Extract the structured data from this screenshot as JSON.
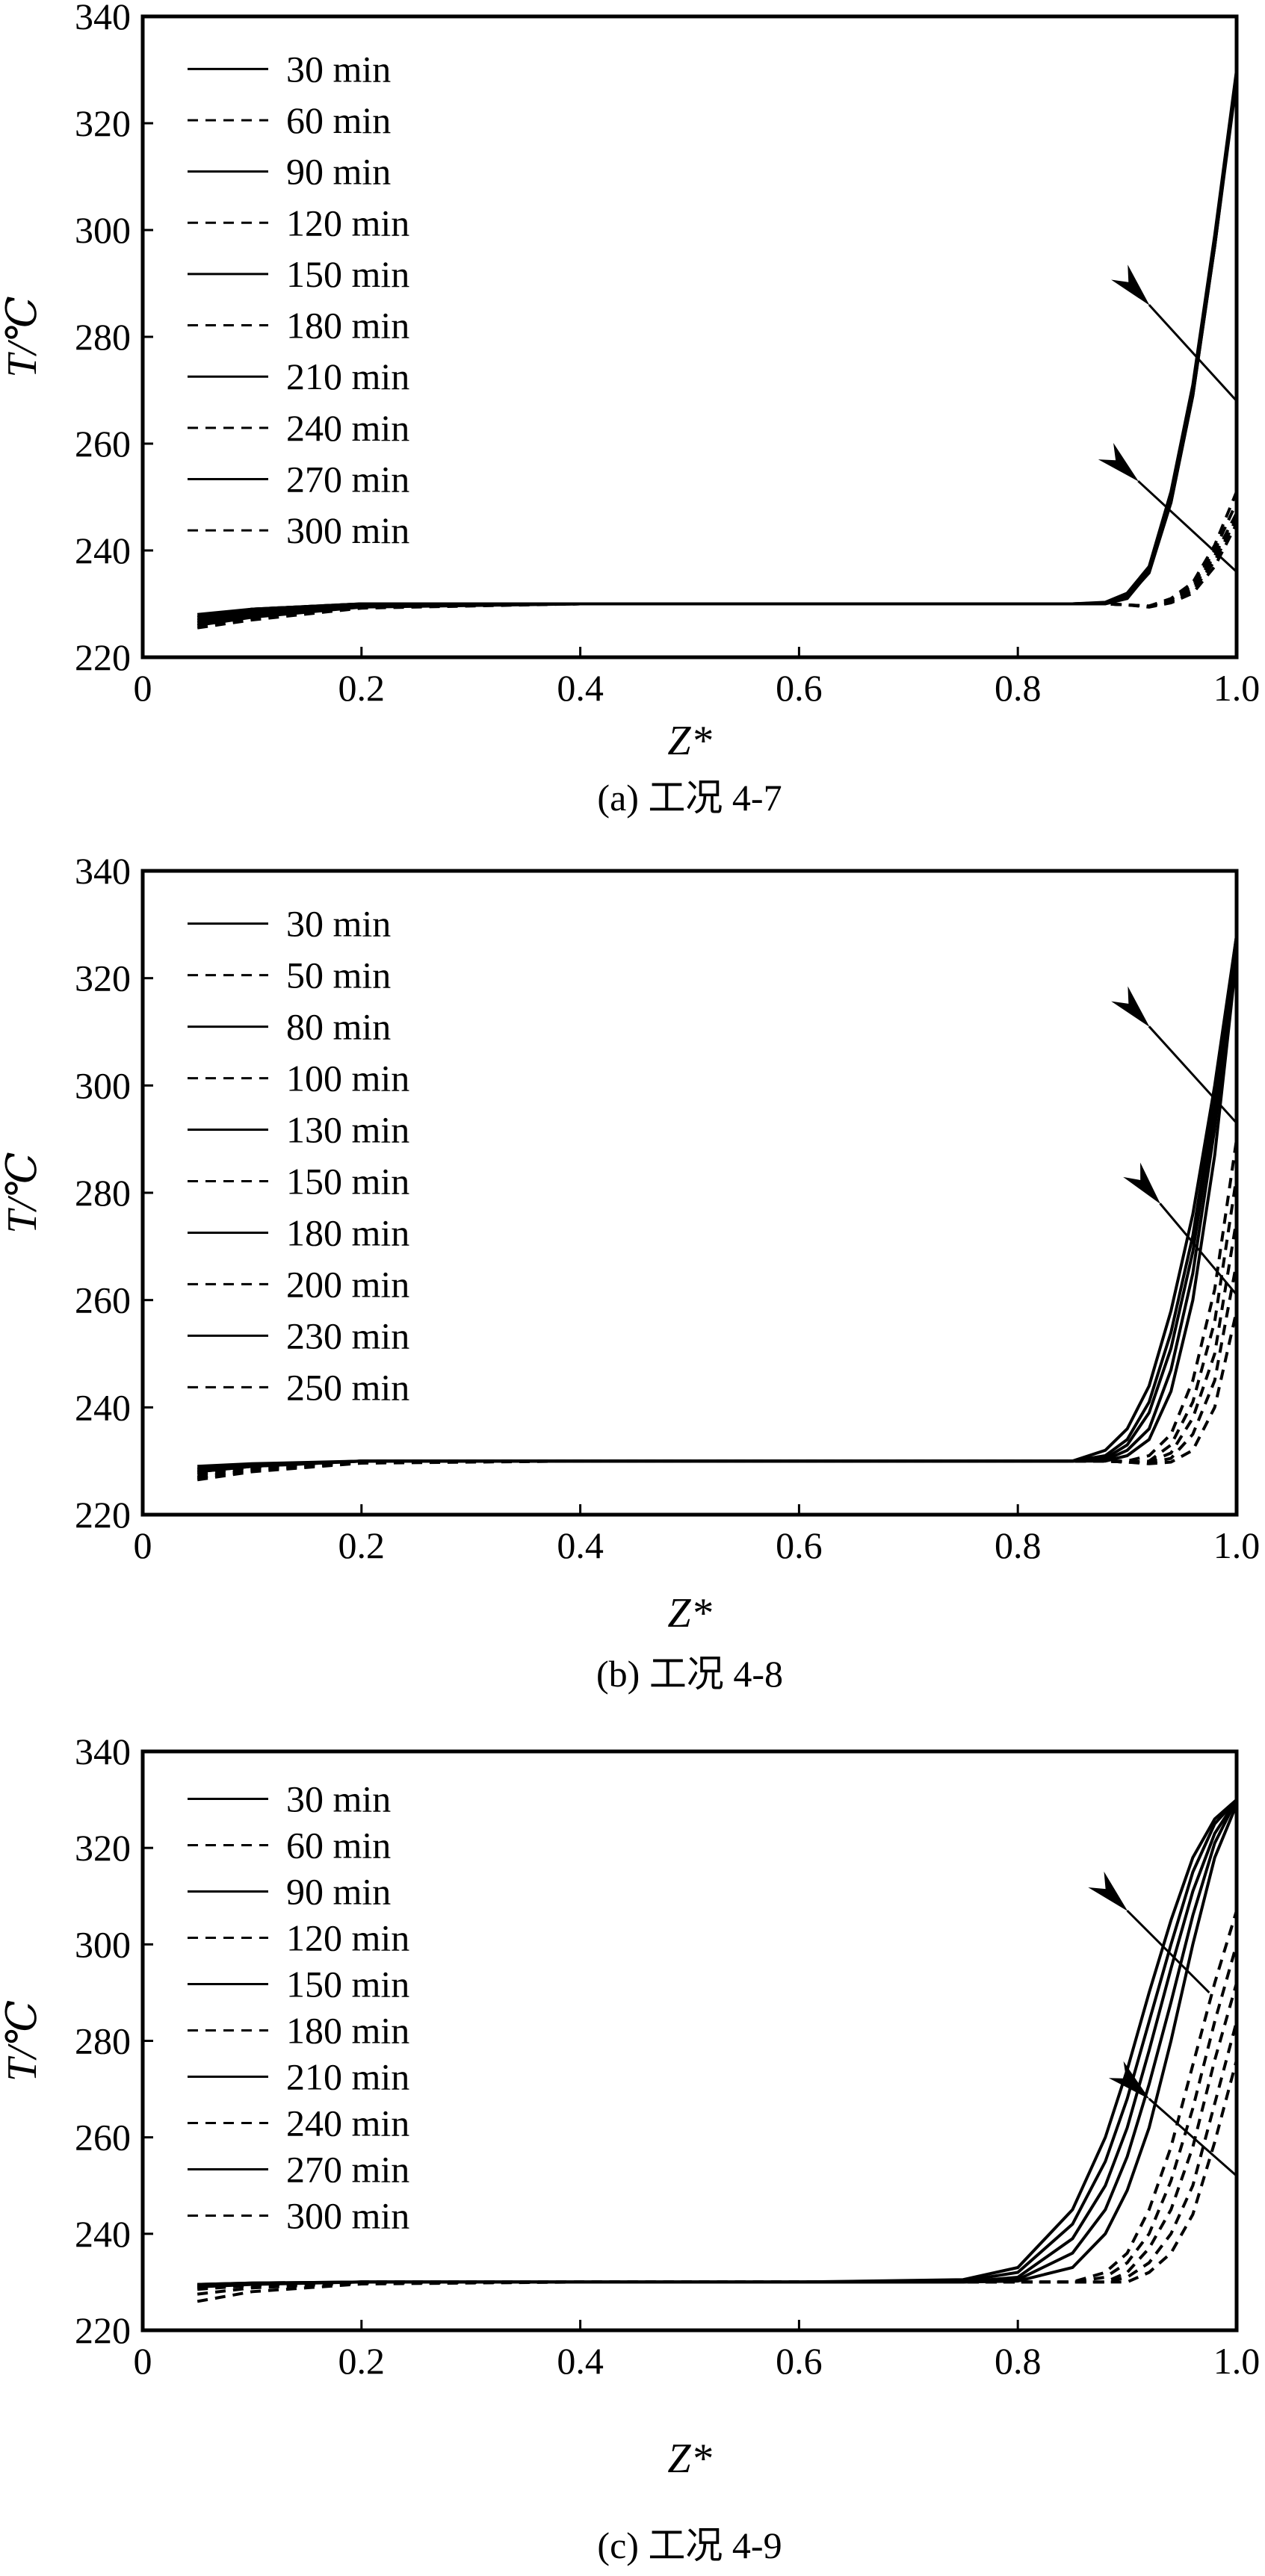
{
  "chart_data": [
    {
      "type": "line",
      "caption": "(a) 工况 4-7",
      "xlabel": "Z*",
      "ylabel": "T/℃",
      "xlim": [
        0,
        1.0
      ],
      "ylim": [
        220,
        340
      ],
      "xticks": [
        "0",
        "0.2",
        "0.4",
        "0.6",
        "0.8",
        "1.0"
      ],
      "yticks": [
        "220",
        "240",
        "260",
        "280",
        "300",
        "320",
        "340"
      ],
      "legend_position": "top-left",
      "x": [
        0.05,
        0.1,
        0.2,
        0.4,
        0.6,
        0.75,
        0.8,
        0.85,
        0.88,
        0.9,
        0.92,
        0.94,
        0.96,
        0.98,
        1.0
      ],
      "series": [
        {
          "name": "30 min",
          "style": "solid",
          "values": [
            228,
            229,
            230,
            230,
            230,
            230,
            230,
            230,
            230,
            231,
            236,
            249,
            269,
            297,
            329
          ]
        },
        {
          "name": "60 min",
          "style": "dashed",
          "values": [
            227.5,
            229,
            230,
            230,
            230,
            230,
            230,
            230,
            230,
            229.8,
            229.6,
            231,
            234,
            241,
            251
          ]
        },
        {
          "name": "90 min",
          "style": "solid",
          "values": [
            227.5,
            229,
            230,
            230,
            230,
            230,
            230,
            230,
            230.3,
            232,
            237,
            251,
            271,
            299,
            330
          ]
        },
        {
          "name": "120 min",
          "style": "dashed",
          "values": [
            227,
            228.5,
            229.8,
            230,
            230,
            230,
            230,
            230,
            230,
            229.8,
            229.6,
            230.8,
            233.5,
            240,
            249
          ]
        },
        {
          "name": "150 min",
          "style": "solid",
          "values": [
            227,
            228.5,
            229.8,
            230,
            230,
            230,
            230,
            230,
            230.2,
            231.5,
            236.5,
            250,
            270,
            298,
            329
          ]
        },
        {
          "name": "180 min",
          "style": "dashed",
          "values": [
            226.5,
            228,
            229.6,
            230,
            230,
            230,
            230,
            230,
            230,
            229.8,
            229.5,
            230.6,
            233,
            239,
            247
          ]
        },
        {
          "name": "210 min",
          "style": "solid",
          "values": [
            226.5,
            228,
            229.6,
            230,
            230,
            230,
            230,
            230,
            230.2,
            231.5,
            236,
            249.5,
            270,
            297,
            329
          ]
        },
        {
          "name": "240 min",
          "style": "dashed",
          "values": [
            226,
            227.5,
            229.4,
            230,
            230,
            230,
            230,
            230,
            230,
            229.8,
            229.5,
            230.4,
            232.5,
            238,
            246
          ]
        },
        {
          "name": "270 min",
          "style": "solid",
          "values": [
            226,
            227.5,
            229.4,
            230,
            230,
            230,
            230,
            230,
            230.1,
            231.3,
            235.8,
            249,
            269,
            297,
            328
          ]
        },
        {
          "name": "300 min",
          "style": "dashed",
          "values": [
            225.5,
            227,
            229.2,
            230,
            230,
            230,
            230,
            230,
            230,
            229.8,
            229.4,
            230.2,
            232,
            237,
            245
          ]
        }
      ],
      "arrows": [
        {
          "from": [
            1.0,
            268
          ],
          "to": [
            0.92,
            286
          ]
        },
        {
          "from": [
            1.0,
            236
          ],
          "to": [
            0.91,
            253
          ]
        }
      ]
    },
    {
      "type": "line",
      "caption": "(b) 工况 4-8",
      "xlabel": "Z*",
      "ylabel": "T/℃",
      "xlim": [
        0,
        1.0
      ],
      "ylim": [
        220,
        340
      ],
      "xticks": [
        "0",
        "0.2",
        "0.4",
        "0.6",
        "0.8",
        "1.0"
      ],
      "yticks": [
        "220",
        "240",
        "260",
        "280",
        "300",
        "320",
        "340"
      ],
      "legend_position": "top-left",
      "x": [
        0.05,
        0.1,
        0.2,
        0.4,
        0.6,
        0.75,
        0.8,
        0.85,
        0.88,
        0.9,
        0.92,
        0.94,
        0.96,
        0.98,
        1.0
      ],
      "series": [
        {
          "name": "30 min",
          "style": "solid",
          "values": [
            229,
            229.5,
            230,
            230,
            230,
            230,
            230,
            230,
            232,
            236,
            244,
            258,
            276,
            300,
            328
          ]
        },
        {
          "name": "50 min",
          "style": "dashed",
          "values": [
            228,
            229,
            230,
            230,
            230,
            230,
            230,
            230,
            230,
            230,
            231,
            235,
            245,
            262,
            290
          ]
        },
        {
          "name": "80 min",
          "style": "solid",
          "values": [
            228.5,
            229.3,
            230,
            230,
            230,
            230,
            230,
            230,
            231,
            234,
            241,
            254,
            272,
            298,
            328
          ]
        },
        {
          "name": "100 min",
          "style": "dashed",
          "values": [
            227.5,
            228.8,
            230,
            230,
            230,
            230,
            230,
            230,
            230,
            229.8,
            230,
            233,
            241,
            256,
            283
          ]
        },
        {
          "name": "130 min",
          "style": "solid",
          "values": [
            228.5,
            229.2,
            230,
            230,
            230,
            230,
            230,
            230,
            230.5,
            233,
            239,
            251,
            269,
            295,
            327
          ]
        },
        {
          "name": "150 min",
          "style": "dashed",
          "values": [
            227,
            228.5,
            229.8,
            230,
            230,
            230,
            230,
            230,
            230,
            229.8,
            229.8,
            231.5,
            238,
            250,
            275
          ]
        },
        {
          "name": "180 min",
          "style": "solid",
          "values": [
            228,
            229,
            230,
            230,
            230,
            230,
            230,
            230,
            230.2,
            232,
            236,
            247,
            265,
            292,
            326
          ]
        },
        {
          "name": "200 min",
          "style": "dashed",
          "values": [
            226.8,
            228.3,
            229.7,
            230,
            230,
            230,
            230,
            230,
            230,
            229.8,
            229.6,
            230.5,
            235,
            245,
            267
          ]
        },
        {
          "name": "230 min",
          "style": "solid",
          "values": [
            228,
            229,
            230,
            230,
            230,
            230,
            230,
            230,
            230,
            231,
            234,
            243,
            260,
            287,
            324
          ]
        },
        {
          "name": "250 min",
          "style": "dashed",
          "values": [
            226.5,
            228,
            229.6,
            230,
            230,
            230,
            230,
            230,
            230,
            229.8,
            229.5,
            229.8,
            232,
            240,
            258
          ]
        }
      ],
      "arrows": [
        {
          "from": [
            1.0,
            293
          ],
          "to": [
            0.92,
            311
          ]
        },
        {
          "from": [
            1.0,
            261
          ],
          "to": [
            0.93,
            278
          ]
        }
      ]
    },
    {
      "type": "line",
      "caption": "(c) 工况 4-9",
      "xlabel": "Z*",
      "ylabel": "T/℃",
      "xlim": [
        0,
        1.0
      ],
      "ylim": [
        220,
        340
      ],
      "xticks": [
        "0",
        "0.2",
        "0.4",
        "0.6",
        "0.8",
        "1.0"
      ],
      "yticks": [
        "220",
        "240",
        "260",
        "280",
        "300",
        "320",
        "340"
      ],
      "legend_position": "top-left",
      "x": [
        0.05,
        0.1,
        0.2,
        0.4,
        0.6,
        0.75,
        0.8,
        0.85,
        0.88,
        0.9,
        0.92,
        0.94,
        0.96,
        0.98,
        1.0
      ],
      "series": [
        {
          "name": "30 min",
          "style": "solid",
          "values": [
            229.5,
            229.8,
            230,
            230,
            230,
            230.5,
            233,
            245,
            260,
            274,
            290,
            305,
            318,
            326,
            330
          ]
        },
        {
          "name": "60 min",
          "style": "dashed",
          "values": [
            229,
            229.6,
            230,
            230,
            230,
            230,
            230,
            230,
            232,
            236,
            245,
            258,
            275,
            292,
            307
          ]
        },
        {
          "name": "90 min",
          "style": "solid",
          "values": [
            229.5,
            229.8,
            230,
            230,
            230,
            230.2,
            232,
            242,
            255,
            268,
            284,
            300,
            315,
            325,
            330
          ]
        },
        {
          "name": "120 min",
          "style": "dashed",
          "values": [
            228.8,
            229.5,
            230,
            230,
            230,
            230,
            230,
            230,
            231,
            234,
            240,
            251,
            266,
            284,
            300
          ]
        },
        {
          "name": "150 min",
          "style": "solid",
          "values": [
            229.3,
            229.7,
            230,
            230,
            230,
            230,
            231,
            239,
            250,
            262,
            278,
            295,
            311,
            323,
            330
          ]
        },
        {
          "name": "180 min",
          "style": "dashed",
          "values": [
            228.5,
            229.3,
            230,
            230,
            230,
            230,
            230,
            230,
            230,
            232,
            237,
            245,
            258,
            276,
            292
          ]
        },
        {
          "name": "210 min",
          "style": "solid",
          "values": [
            229.2,
            229.6,
            230,
            230,
            230,
            230,
            230.5,
            236,
            245,
            256,
            271,
            288,
            306,
            321,
            330
          ]
        },
        {
          "name": "240 min",
          "style": "dashed",
          "values": [
            227.5,
            228.8,
            229.8,
            230,
            230,
            230,
            230,
            230,
            230,
            231,
            234,
            240,
            250,
            267,
            284
          ]
        },
        {
          "name": "270 min",
          "style": "solid",
          "values": [
            229,
            229.5,
            230,
            230,
            230,
            230,
            230.2,
            233,
            240,
            249,
            262,
            280,
            300,
            318,
            329
          ]
        },
        {
          "name": "300 min",
          "style": "dashed",
          "values": [
            226,
            228,
            229.6,
            230,
            230,
            230,
            230,
            230,
            230,
            230,
            232,
            236,
            244,
            259,
            276
          ]
        }
      ],
      "arrows": [
        {
          "from": [
            0.975,
            290
          ],
          "to": [
            0.9,
            307
          ]
        },
        {
          "from": [
            1.0,
            252
          ],
          "to": [
            0.92,
            268
          ]
        }
      ]
    }
  ]
}
